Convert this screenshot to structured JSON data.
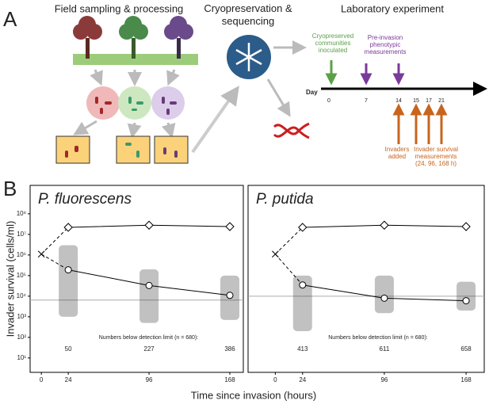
{
  "diagram": {
    "panel_label": "A",
    "field_title": "Field sampling & processing",
    "cryo_title": [
      "Cryopreservation &",
      "sequencing"
    ],
    "lab_title": "Laboratory experiment",
    "inoculated": [
      "Cryopreserved",
      "communities",
      "inoculated"
    ],
    "pre_invasion": [
      "Pre-invasion",
      "phenotypic",
      "measurements"
    ],
    "day_label": "Day",
    "days": [
      "0",
      "7",
      "14",
      "15",
      "17",
      "21"
    ],
    "invaders_added": [
      "Invaders",
      "added"
    ],
    "survival": [
      "Invader survival",
      "measurements",
      "(24, 96, 168 h)"
    ]
  },
  "panel_b": {
    "panel_label": "B",
    "y_label": "Invader survival (cells/ml)",
    "x_label": "Time since invasion (hours)"
  },
  "chart_data": [
    {
      "type": "scatter",
      "title": "P. fluorescens",
      "log_y": true,
      "xlim": [
        -10,
        180
      ],
      "xticks": [
        0,
        24,
        96,
        168
      ],
      "ylim": [
        2,
        2400000000
      ],
      "yticks": [
        {
          "value": 10,
          "label": "10¹"
        },
        {
          "value": 100,
          "label": "10²"
        },
        {
          "value": 1000,
          "label": "10³"
        },
        {
          "value": 10000,
          "label": "10⁴"
        },
        {
          "value": 100000,
          "label": "10⁵"
        },
        {
          "value": 1000000,
          "label": "10⁶"
        },
        {
          "value": 10000000,
          "label": "10⁷"
        },
        {
          "value": 100000000,
          "label": "10⁸"
        }
      ],
      "inoculum": {
        "x": 0,
        "value": 1100000
      },
      "series": [
        {
          "marker": "diamond",
          "color": "#000000",
          "x": [
            24,
            96,
            168
          ],
          "values": [
            22000000,
            28000000,
            24000000
          ]
        },
        {
          "marker": "circle",
          "color": "#000000",
          "x": [
            24,
            96,
            168
          ],
          "values": [
            190000,
            33000,
            11000
          ]
        }
      ],
      "spread": [
        {
          "x": 24,
          "low": 1000,
          "high": 3000000
        },
        {
          "x": 96,
          "low": 500,
          "high": 200000
        },
        {
          "x": 168,
          "low": 700,
          "high": 100000
        }
      ],
      "detection_limit": 6500,
      "below_limit_label": "Numbers below detection limit (n = 680):",
      "below_limit_counts": [
        50,
        227,
        386
      ]
    },
    {
      "type": "scatter",
      "title": "P. putida",
      "log_y": true,
      "xlim": [
        -24,
        184
      ],
      "xticks": [
        0,
        24,
        96,
        168
      ],
      "ylim": [
        2,
        2400000000
      ],
      "inoculum": {
        "x": 0,
        "value": 1100000
      },
      "series": [
        {
          "marker": "diamond",
          "color": "#000000",
          "x": [
            24,
            96,
            168
          ],
          "values": [
            22000000,
            28000000,
            24000000
          ]
        },
        {
          "marker": "circle",
          "color": "#000000",
          "x": [
            24,
            96,
            168
          ],
          "values": [
            35000,
            8000,
            6000
          ]
        }
      ],
      "spread": [
        {
          "x": 24,
          "low": 200,
          "high": 100000
        },
        {
          "x": 96,
          "low": 1500,
          "high": 100000
        },
        {
          "x": 168,
          "low": 2000,
          "high": 50000
        }
      ],
      "detection_limit": 10000,
      "below_limit_label": "Numbers below detection limit (n = 680):",
      "below_limit_counts": [
        413,
        611,
        658
      ]
    }
  ]
}
